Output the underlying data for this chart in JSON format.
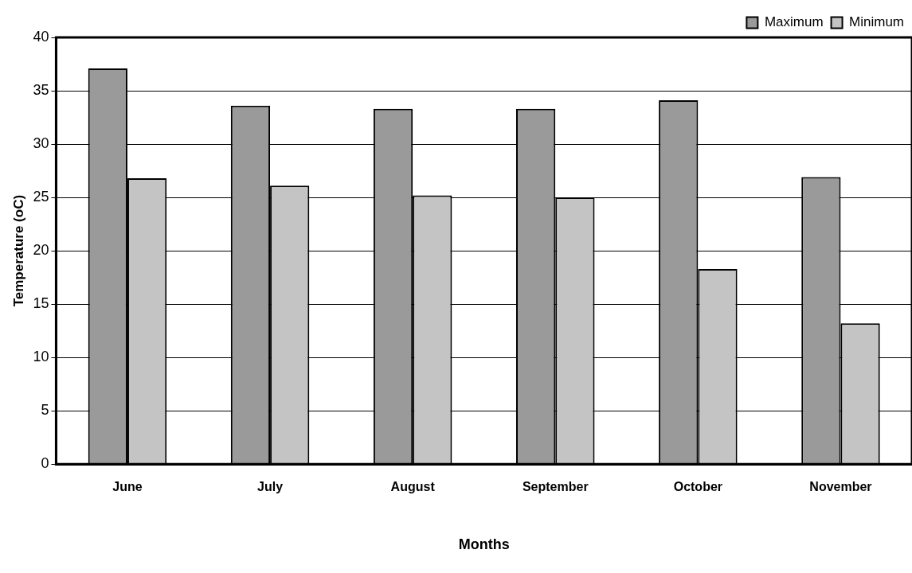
{
  "chart_data": {
    "type": "bar",
    "xlabel": "Months",
    "ylabel": "Temperature (oC)",
    "categories": [
      "June",
      "July",
      "August",
      "September",
      "October",
      "November"
    ],
    "series": [
      {
        "name": "Maximum",
        "color": "#9a9a9a",
        "values": [
          37.1,
          33.6,
          33.3,
          33.3,
          34.1,
          26.9
        ]
      },
      {
        "name": "Minimum",
        "color": "#c4c4c4",
        "values": [
          26.8,
          26.1,
          25.2,
          25.0,
          18.3,
          13.2
        ]
      }
    ],
    "ylim": [
      0,
      40
    ],
    "yticks": [
      0,
      5,
      10,
      15,
      20,
      25,
      30,
      35,
      40
    ],
    "grid": "y",
    "legend": "top right"
  }
}
